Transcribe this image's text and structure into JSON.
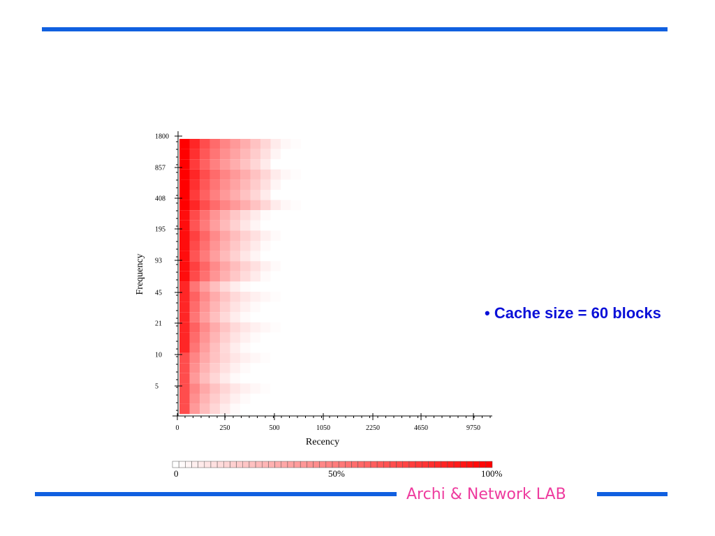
{
  "slide": {
    "bullet_text": "• Cache size = 60 blocks",
    "footer_lab": "Archi & Network LAB",
    "rule_color": "#1060e0",
    "bullet_color": "#0a10d8",
    "footer_color": "#ee3b9e"
  },
  "chart_data": {
    "type": "heatmap",
    "title": "",
    "xlabel": "Recency",
    "ylabel": "Frequency",
    "x_tick_labels": [
      "0",
      "250",
      "500",
      "1050",
      "2250",
      "4650",
      "9750"
    ],
    "y_tick_labels": [
      "1800",
      "857",
      "408",
      "195",
      "93",
      "45",
      "21",
      "10",
      "5"
    ],
    "color_scale": {
      "min_label": "0",
      "mid_label": "50%",
      "max_label": "100%",
      "low_color": "#ffffff",
      "high_color": "#ff0000"
    },
    "grid_cols": 16,
    "grid_rows": 27,
    "row_profiles": [
      {
        "rows_from": 0,
        "rows_to": 6,
        "values": [
          1.0,
          0.85,
          0.7,
          0.58,
          0.48,
          0.4,
          0.32,
          0.24,
          0.16,
          0.08,
          0.03,
          0.01,
          0,
          0,
          0,
          0
        ]
      },
      {
        "rows_from": 7,
        "rows_to": 13,
        "values": [
          0.95,
          0.75,
          0.6,
          0.46,
          0.35,
          0.26,
          0.18,
          0.12,
          0.06,
          0.02,
          0,
          0,
          0,
          0,
          0,
          0
        ]
      },
      {
        "rows_from": 14,
        "rows_to": 20,
        "values": [
          0.85,
          0.62,
          0.46,
          0.33,
          0.23,
          0.15,
          0.1,
          0.06,
          0.03,
          0.01,
          0,
          0,
          0,
          0,
          0,
          0
        ]
      },
      {
        "rows_from": 21,
        "rows_to": 26,
        "values": [
          0.7,
          0.48,
          0.34,
          0.24,
          0.16,
          0.1,
          0.06,
          0.03,
          0.01,
          0,
          0,
          0,
          0,
          0,
          0,
          0
        ]
      }
    ]
  }
}
